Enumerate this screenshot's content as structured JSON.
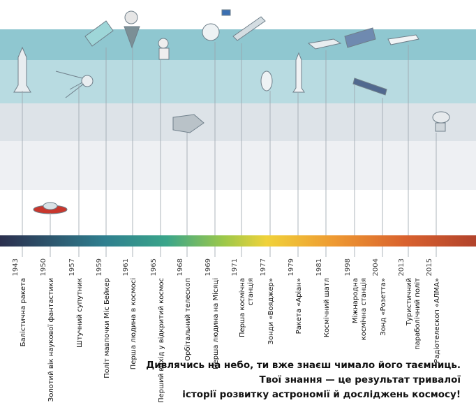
{
  "timeline": {
    "events": [
      {
        "year": "1943",
        "label_lines": [
          "Балістична ракета"
        ]
      },
      {
        "year": "1950",
        "label_lines": [
          "Золотий вік наукової фантастики"
        ]
      },
      {
        "year": "1957",
        "label_lines": [
          "Штучний супутник"
        ]
      },
      {
        "year": "1959",
        "label_lines": [
          "Політ мавпочки Міс Бейкер"
        ]
      },
      {
        "year": "1961",
        "label_lines": [
          "Перша людина в космосі"
        ]
      },
      {
        "year": "1965",
        "label_lines": [
          "Перший вихід у відкритий космос"
        ]
      },
      {
        "year": "1968",
        "label_lines": [
          "Орбітальний телескоп"
        ]
      },
      {
        "year": "1969",
        "label_lines": [
          "Перша людина на Місяці"
        ]
      },
      {
        "year": "1971",
        "label_lines": [
          "Перша космічна",
          "станція"
        ]
      },
      {
        "year": "1977",
        "label_lines": [
          "Зонди «Вояджер»"
        ]
      },
      {
        "year": "1979",
        "label_lines": [
          "Ракета «Аріан»"
        ]
      },
      {
        "year": "1981",
        "label_lines": [
          "Космічний шатл"
        ]
      },
      {
        "year": "1998",
        "label_lines": [
          "Міжнародна",
          "космічна станція"
        ]
      },
      {
        "year": "2004",
        "label_lines": [
          "Зонд «Розетта»"
        ]
      },
      {
        "year": "2013",
        "label_lines": [
          "Туристичний",
          "параболічний політ"
        ]
      },
      {
        "year": "2015",
        "label_lines": [
          "Радіотелескоп «АЛМА»"
        ]
      }
    ]
  },
  "footer": {
    "lines": [
      "Дивлячись на небо, ти вже знаєш чимало його таємниць.",
      "Твої знання — це результат тривалої",
      "історії розвитку астрономії й досліджень космосу!"
    ]
  }
}
